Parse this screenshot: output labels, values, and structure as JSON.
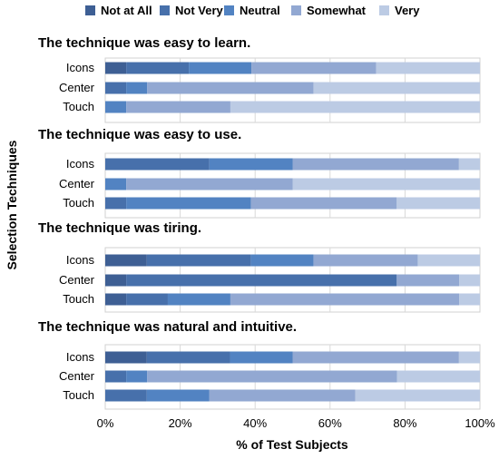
{
  "chart_data": {
    "type": "bar",
    "orientation": "horizontal",
    "stacked": true,
    "percent": true,
    "legend_position": "top",
    "grid": true,
    "xlabel": "% of Test Subjects",
    "ylabel": "Selection Techniques",
    "xlim": [
      0,
      100
    ],
    "xticks": [
      "0%",
      "20%",
      "40%",
      "60%",
      "80%",
      "100%"
    ],
    "series": [
      {
        "name": "Not at All",
        "color": "#3e5f94"
      },
      {
        "name": "Not Very",
        "color": "#4770ab"
      },
      {
        "name": "Neutral",
        "color": "#5283c2"
      },
      {
        "name": "Somewhat",
        "color": "#92a8d2"
      },
      {
        "name": "Very",
        "color": "#bccbe4"
      }
    ],
    "panels": [
      {
        "title": "The technique was easy to learn.",
        "categories": [
          "Icons",
          "Center",
          "Touch"
        ],
        "values": [
          [
            5.6,
            16.7,
            16.7,
            33.3,
            27.7
          ],
          [
            0,
            5.6,
            5.6,
            44.4,
            44.4
          ],
          [
            0,
            0,
            5.6,
            27.8,
            66.6
          ]
        ]
      },
      {
        "title": "The technique was easy to use.",
        "categories": [
          "Icons",
          "Center",
          "Touch"
        ],
        "values": [
          [
            0,
            27.8,
            22.2,
            44.4,
            5.6
          ],
          [
            0,
            0,
            5.6,
            44.4,
            50
          ],
          [
            0,
            5.6,
            33.3,
            38.9,
            22.2
          ]
        ]
      },
      {
        "title": "The technique was tiring.",
        "categories": [
          "Icons",
          "Center",
          "Touch"
        ],
        "values": [
          [
            11.1,
            27.8,
            16.7,
            27.8,
            16.6
          ],
          [
            5.6,
            72.2,
            0,
            16.7,
            5.5
          ],
          [
            5.6,
            11.1,
            16.7,
            61.1,
            5.5
          ]
        ]
      },
      {
        "title": "The technique was natural and intuitive.",
        "categories": [
          "Icons",
          "Center",
          "Touch"
        ],
        "values": [
          [
            11.1,
            22.2,
            16.7,
            44.4,
            5.6
          ],
          [
            0,
            5.6,
            5.6,
            66.7,
            22.1
          ],
          [
            0,
            11.1,
            16.7,
            38.9,
            33.3
          ]
        ]
      }
    ]
  }
}
